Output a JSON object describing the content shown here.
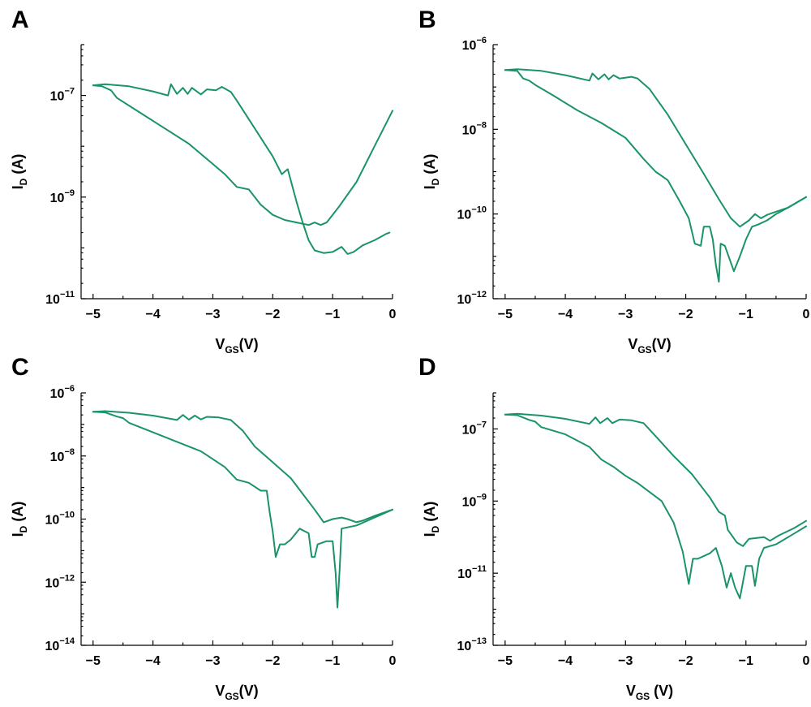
{
  "chart_data": [
    {
      "panel": "A",
      "type": "line",
      "xlabel": {
        "main": "V",
        "sub": "GS",
        "tail": "(V)"
      },
      "ylabel": {
        "main": "I",
        "sub": "D",
        "tail": " (A)"
      },
      "xlim": [
        -5.2,
        0
      ],
      "ylim_log10": [
        -11,
        -6
      ],
      "x_ticks": [
        -5,
        -4,
        -3,
        -2,
        -1,
        0
      ],
      "y_tick_exponents": [
        -11,
        -9,
        -7
      ],
      "y_scale": "log",
      "color": "#1a9466",
      "series": [
        {
          "values": [
            [
              -5.0,
              -6.8
            ],
            [
              -4.85,
              -6.82
            ],
            [
              -4.7,
              -6.9
            ],
            [
              -4.6,
              -7.05
            ],
            [
              -4.2,
              -7.35
            ],
            [
              -3.8,
              -7.65
            ],
            [
              -3.4,
              -7.95
            ],
            [
              -3.0,
              -8.35
            ],
            [
              -2.8,
              -8.55
            ],
            [
              -2.6,
              -8.8
            ],
            [
              -2.4,
              -8.85
            ],
            [
              -2.2,
              -9.15
            ],
            [
              -2.0,
              -9.35
            ],
            [
              -1.8,
              -9.45
            ],
            [
              -1.6,
              -9.5
            ],
            [
              -1.4,
              -9.55
            ],
            [
              -1.3,
              -9.5
            ],
            [
              -1.2,
              -9.55
            ],
            [
              -1.1,
              -9.5
            ],
            [
              -0.9,
              -9.2
            ],
            [
              -0.6,
              -8.7
            ],
            [
              -0.3,
              -8.0
            ],
            [
              0.0,
              -7.3
            ]
          ]
        },
        {
          "values": [
            [
              -5.0,
              -6.8
            ],
            [
              -4.8,
              -6.78
            ],
            [
              -4.4,
              -6.82
            ],
            [
              -4.0,
              -6.92
            ],
            [
              -3.75,
              -7.0
            ],
            [
              -3.7,
              -6.78
            ],
            [
              -3.6,
              -6.97
            ],
            [
              -3.5,
              -6.85
            ],
            [
              -3.42,
              -6.97
            ],
            [
              -3.35,
              -6.85
            ],
            [
              -3.2,
              -6.98
            ],
            [
              -3.1,
              -6.88
            ],
            [
              -2.95,
              -6.9
            ],
            [
              -2.85,
              -6.83
            ],
            [
              -2.7,
              -6.93
            ],
            [
              -2.6,
              -7.1
            ],
            [
              -2.3,
              -7.65
            ],
            [
              -2.0,
              -8.2
            ],
            [
              -1.85,
              -8.55
            ],
            [
              -1.75,
              -8.45
            ],
            [
              -1.6,
              -9.1
            ],
            [
              -1.5,
              -9.5
            ],
            [
              -1.4,
              -9.85
            ],
            [
              -1.3,
              -10.05
            ],
            [
              -1.15,
              -10.1
            ],
            [
              -1.0,
              -10.08
            ],
            [
              -0.85,
              -9.98
            ],
            [
              -0.75,
              -10.12
            ],
            [
              -0.65,
              -10.08
            ],
            [
              -0.5,
              -9.95
            ],
            [
              -0.3,
              -9.85
            ],
            [
              -0.1,
              -9.72
            ],
            [
              -0.05,
              -9.7
            ]
          ]
        }
      ]
    },
    {
      "panel": "B",
      "type": "line",
      "xlabel": {
        "main": "V",
        "sub": "GS",
        "tail": "(V)"
      },
      "ylabel": {
        "main": "I",
        "sub": "D",
        "tail": " (A)"
      },
      "xlim": [
        -5.2,
        0
      ],
      "ylim_log10": [
        -12,
        -6
      ],
      "x_ticks": [
        -5,
        -4,
        -3,
        -2,
        -1,
        0
      ],
      "y_tick_exponents": [
        -12,
        -10,
        -8,
        -6
      ],
      "y_scale": "log",
      "color": "#1a9466",
      "series": [
        {
          "values": [
            [
              -5.0,
              -6.6
            ],
            [
              -4.8,
              -6.62
            ],
            [
              -4.7,
              -6.8
            ],
            [
              -4.6,
              -6.85
            ],
            [
              -4.5,
              -6.95
            ],
            [
              -4.2,
              -7.2
            ],
            [
              -3.8,
              -7.55
            ],
            [
              -3.4,
              -7.85
            ],
            [
              -3.0,
              -8.2
            ],
            [
              -2.7,
              -8.7
            ],
            [
              -2.5,
              -9.0
            ],
            [
              -2.3,
              -9.2
            ],
            [
              -2.1,
              -9.7
            ],
            [
              -1.95,
              -10.1
            ],
            [
              -1.85,
              -10.7
            ],
            [
              -1.75,
              -10.75
            ],
            [
              -1.7,
              -10.3
            ],
            [
              -1.6,
              -10.3
            ],
            [
              -1.55,
              -10.6
            ],
            [
              -1.5,
              -11.2
            ],
            [
              -1.45,
              -11.6
            ],
            [
              -1.42,
              -10.7
            ],
            [
              -1.35,
              -10.75
            ],
            [
              -1.3,
              -10.95
            ],
            [
              -1.2,
              -11.35
            ],
            [
              -1.1,
              -11.0
            ],
            [
              -1.0,
              -10.6
            ],
            [
              -0.9,
              -10.3
            ],
            [
              -0.8,
              -10.25
            ],
            [
              -0.65,
              -10.15
            ],
            [
              -0.5,
              -10.0
            ],
            [
              -0.3,
              -9.85
            ],
            [
              0.0,
              -9.6
            ]
          ]
        },
        {
          "values": [
            [
              -5.0,
              -6.6
            ],
            [
              -4.8,
              -6.58
            ],
            [
              -4.4,
              -6.62
            ],
            [
              -4.0,
              -6.72
            ],
            [
              -3.6,
              -6.85
            ],
            [
              -3.55,
              -6.68
            ],
            [
              -3.45,
              -6.82
            ],
            [
              -3.35,
              -6.7
            ],
            [
              -3.28,
              -6.82
            ],
            [
              -3.2,
              -6.72
            ],
            [
              -3.1,
              -6.8
            ],
            [
              -2.9,
              -6.76
            ],
            [
              -2.8,
              -6.8
            ],
            [
              -2.6,
              -7.05
            ],
            [
              -2.3,
              -7.65
            ],
            [
              -2.0,
              -8.35
            ],
            [
              -1.7,
              -9.05
            ],
            [
              -1.45,
              -9.65
            ],
            [
              -1.25,
              -10.1
            ],
            [
              -1.1,
              -10.3
            ],
            [
              -0.95,
              -10.15
            ],
            [
              -0.85,
              -10.0
            ],
            [
              -0.75,
              -10.1
            ],
            [
              -0.65,
              -10.02
            ],
            [
              -0.55,
              -9.97
            ],
            [
              -0.3,
              -9.85
            ],
            [
              0.0,
              -9.6
            ]
          ]
        }
      ]
    },
    {
      "panel": "C",
      "type": "line",
      "xlabel": {
        "main": "V",
        "sub": "GS",
        "tail": "(V)"
      },
      "ylabel": {
        "main": "I",
        "sub": "D",
        "tail": " (A)"
      },
      "xlim": [
        -5.2,
        0
      ],
      "ylim_log10": [
        -14,
        -6
      ],
      "x_ticks": [
        -5,
        -4,
        -3,
        -2,
        -1,
        0
      ],
      "y_tick_exponents": [
        -14,
        -12,
        -10,
        -8,
        -6
      ],
      "y_scale": "log",
      "color": "#1a9466",
      "series": [
        {
          "values": [
            [
              -5.0,
              -6.6
            ],
            [
              -4.8,
              -6.62
            ],
            [
              -4.6,
              -6.75
            ],
            [
              -4.5,
              -6.8
            ],
            [
              -4.4,
              -6.95
            ],
            [
              -4.0,
              -7.25
            ],
            [
              -3.6,
              -7.55
            ],
            [
              -3.2,
              -7.85
            ],
            [
              -2.8,
              -8.35
            ],
            [
              -2.6,
              -8.75
            ],
            [
              -2.4,
              -8.85
            ],
            [
              -2.2,
              -9.1
            ],
            [
              -2.1,
              -9.1
            ],
            [
              -2.05,
              -9.8
            ],
            [
              -2.0,
              -10.4
            ],
            [
              -1.95,
              -11.2
            ],
            [
              -1.88,
              -10.8
            ],
            [
              -1.8,
              -10.8
            ],
            [
              -1.7,
              -10.65
            ],
            [
              -1.55,
              -10.3
            ],
            [
              -1.4,
              -10.45
            ],
            [
              -1.35,
              -11.2
            ],
            [
              -1.3,
              -11.2
            ],
            [
              -1.25,
              -10.8
            ],
            [
              -1.1,
              -10.7
            ],
            [
              -1.0,
              -10.7
            ],
            [
              -0.95,
              -11.7
            ],
            [
              -0.92,
              -12.8
            ],
            [
              -0.88,
              -11.5
            ],
            [
              -0.85,
              -10.3
            ],
            [
              -0.6,
              -10.2
            ],
            [
              -0.3,
              -9.95
            ],
            [
              0.0,
              -9.7
            ]
          ]
        },
        {
          "values": [
            [
              -5.0,
              -6.6
            ],
            [
              -4.8,
              -6.58
            ],
            [
              -4.4,
              -6.63
            ],
            [
              -4.0,
              -6.72
            ],
            [
              -3.6,
              -6.86
            ],
            [
              -3.5,
              -6.7
            ],
            [
              -3.4,
              -6.85
            ],
            [
              -3.3,
              -6.72
            ],
            [
              -3.2,
              -6.84
            ],
            [
              -3.1,
              -6.76
            ],
            [
              -2.9,
              -6.78
            ],
            [
              -2.7,
              -6.86
            ],
            [
              -2.5,
              -7.2
            ],
            [
              -2.3,
              -7.7
            ],
            [
              -2.0,
              -8.2
            ],
            [
              -1.7,
              -8.7
            ],
            [
              -1.5,
              -9.2
            ],
            [
              -1.3,
              -9.7
            ],
            [
              -1.15,
              -10.1
            ],
            [
              -1.0,
              -10.0
            ],
            [
              -0.85,
              -9.95
            ],
            [
              -0.75,
              -10.0
            ],
            [
              -0.6,
              -10.1
            ],
            [
              -0.5,
              -10.05
            ],
            [
              -0.3,
              -9.9
            ],
            [
              0.0,
              -9.7
            ]
          ]
        }
      ]
    },
    {
      "panel": "D",
      "type": "line",
      "xlabel": {
        "main": "V",
        "sub": "GS",
        "tail": " (V)"
      },
      "ylabel": {
        "main": "I",
        "sub": "D",
        "tail": " (A)"
      },
      "xlim": [
        -5.2,
        0
      ],
      "ylim_log10": [
        -13,
        -6
      ],
      "x_ticks": [
        -5,
        -4,
        -3,
        -2,
        -1,
        0
      ],
      "y_tick_exponents": [
        -13,
        -11,
        -9,
        -7
      ],
      "y_scale": "log",
      "color": "#1a9466",
      "series": [
        {
          "values": [
            [
              -5.0,
              -6.6
            ],
            [
              -4.8,
              -6.62
            ],
            [
              -4.6,
              -6.75
            ],
            [
              -4.5,
              -6.8
            ],
            [
              -4.4,
              -6.95
            ],
            [
              -4.0,
              -7.15
            ],
            [
              -3.6,
              -7.5
            ],
            [
              -3.4,
              -7.85
            ],
            [
              -3.2,
              -8.05
            ],
            [
              -3.0,
              -8.3
            ],
            [
              -2.8,
              -8.5
            ],
            [
              -2.6,
              -8.75
            ],
            [
              -2.4,
              -9.0
            ],
            [
              -2.2,
              -9.6
            ],
            [
              -2.05,
              -10.4
            ],
            [
              -1.95,
              -11.3
            ],
            [
              -1.88,
              -10.6
            ],
            [
              -1.8,
              -10.6
            ],
            [
              -1.6,
              -10.45
            ],
            [
              -1.5,
              -10.3
            ],
            [
              -1.4,
              -10.8
            ],
            [
              -1.32,
              -11.4
            ],
            [
              -1.25,
              -11.0
            ],
            [
              -1.18,
              -11.4
            ],
            [
              -1.1,
              -11.7
            ],
            [
              -1.0,
              -10.8
            ],
            [
              -0.9,
              -10.8
            ],
            [
              -0.85,
              -11.35
            ],
            [
              -0.78,
              -10.6
            ],
            [
              -0.7,
              -10.3
            ],
            [
              -0.5,
              -10.2
            ],
            [
              -0.2,
              -9.9
            ],
            [
              0.0,
              -9.7
            ]
          ]
        },
        {
          "values": [
            [
              -5.0,
              -6.6
            ],
            [
              -4.8,
              -6.58
            ],
            [
              -4.4,
              -6.63
            ],
            [
              -4.0,
              -6.72
            ],
            [
              -3.6,
              -6.86
            ],
            [
              -3.5,
              -6.68
            ],
            [
              -3.42,
              -6.84
            ],
            [
              -3.3,
              -6.7
            ],
            [
              -3.22,
              -6.84
            ],
            [
              -3.1,
              -6.74
            ],
            [
              -2.9,
              -6.76
            ],
            [
              -2.7,
              -6.84
            ],
            [
              -2.5,
              -7.2
            ],
            [
              -2.2,
              -7.75
            ],
            [
              -1.9,
              -8.25
            ],
            [
              -1.6,
              -8.9
            ],
            [
              -1.45,
              -9.3
            ],
            [
              -1.35,
              -9.4
            ],
            [
              -1.3,
              -9.8
            ],
            [
              -1.15,
              -10.15
            ],
            [
              -1.05,
              -10.25
            ],
            [
              -0.95,
              -10.05
            ],
            [
              -0.7,
              -10.0
            ],
            [
              -0.6,
              -10.1
            ],
            [
              -0.45,
              -9.95
            ],
            [
              -0.2,
              -9.75
            ],
            [
              0.0,
              -9.55
            ]
          ]
        }
      ]
    }
  ]
}
